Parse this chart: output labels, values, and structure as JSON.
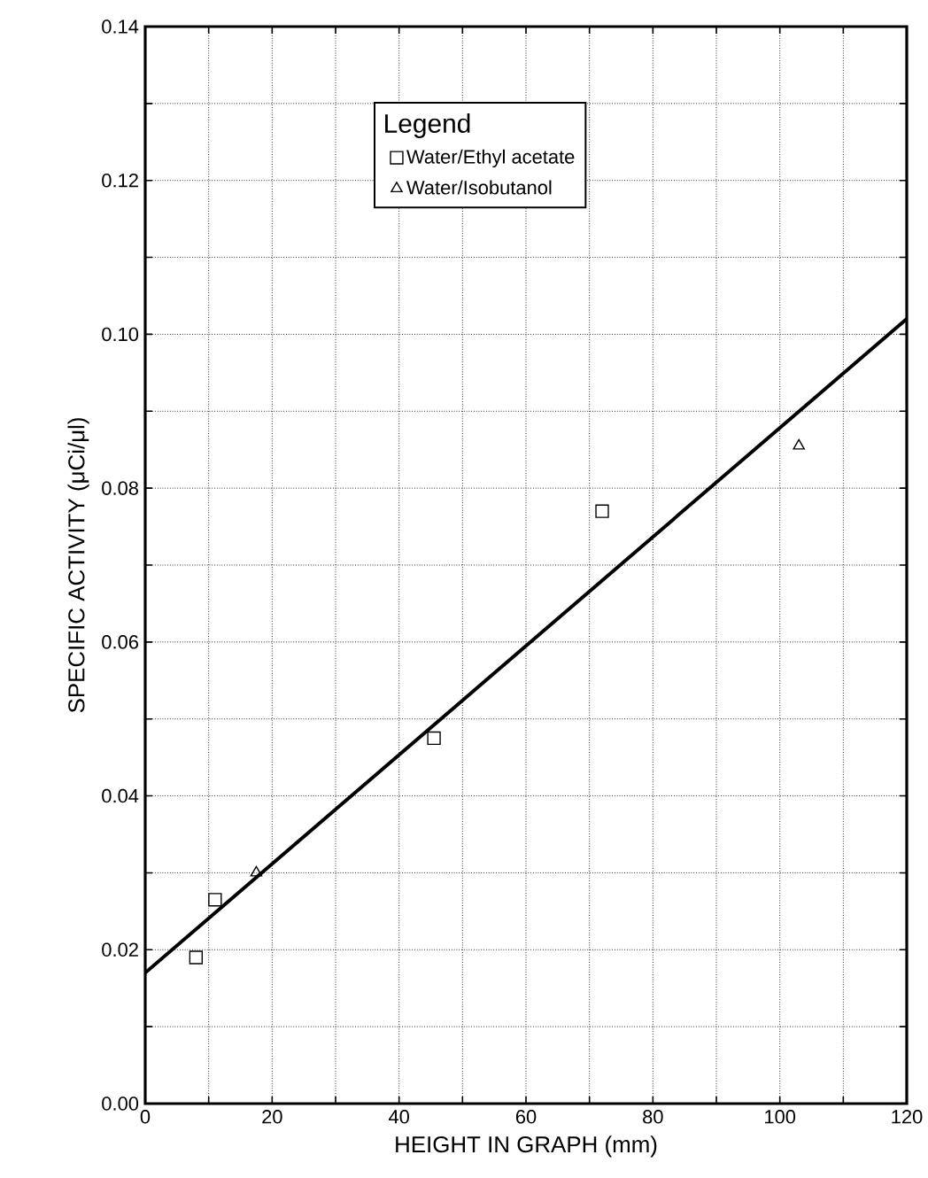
{
  "chart_data": {
    "type": "scatter",
    "xlabel": "HEIGHT IN GRAPH  (mm)",
    "ylabel": "SPECIFIC ACTIVITY  (μCi/μl)",
    "legend_title": "Legend",
    "legend": "top",
    "grid": true,
    "xlim": [
      0,
      120
    ],
    "ylim": [
      0,
      0.14
    ],
    "xticks": [
      0,
      {
        "value": 10,
        "label": null
      },
      20,
      {
        "value": 30,
        "label": null
      },
      40,
      {
        "value": 50,
        "label": null
      },
      60,
      {
        "value": 70,
        "label": null
      },
      80,
      {
        "value": 90,
        "label": null
      },
      100,
      {
        "value": 110,
        "label": null
      },
      120
    ],
    "yticks": [
      {
        "value": 0,
        "label": "0.00"
      },
      {
        "value": 0.01,
        "label": null
      },
      0.02,
      {
        "value": 0.03,
        "label": null
      },
      0.04,
      {
        "value": 0.05,
        "label": null
      },
      0.06,
      {
        "value": 0.07,
        "label": null
      },
      0.08,
      {
        "value": 0.09,
        "label": null
      },
      {
        "value": 0.1,
        "label": "0.10"
      },
      {
        "value": 0.11,
        "label": null
      },
      0.12,
      {
        "value": 0.13,
        "label": null
      },
      0.14
    ],
    "series": [
      {
        "name": "Water/Ethyl acetate",
        "marker": "square",
        "color": "#000000",
        "x": [
          8,
          11,
          45.5,
          72
        ],
        "values": [
          0.019,
          0.0265,
          0.0475,
          0.077
        ]
      },
      {
        "name": "Water/Isobutanol",
        "marker": "triangle",
        "color": "#000000",
        "x": [
          17.5,
          103
        ],
        "values": [
          0.03,
          0.0855
        ]
      },
      {
        "type": "line",
        "marker": "none",
        "line_style": "solid",
        "color": "#000000",
        "x": [
          0,
          120
        ],
        "values": [
          0.017,
          0.102
        ]
      }
    ]
  }
}
